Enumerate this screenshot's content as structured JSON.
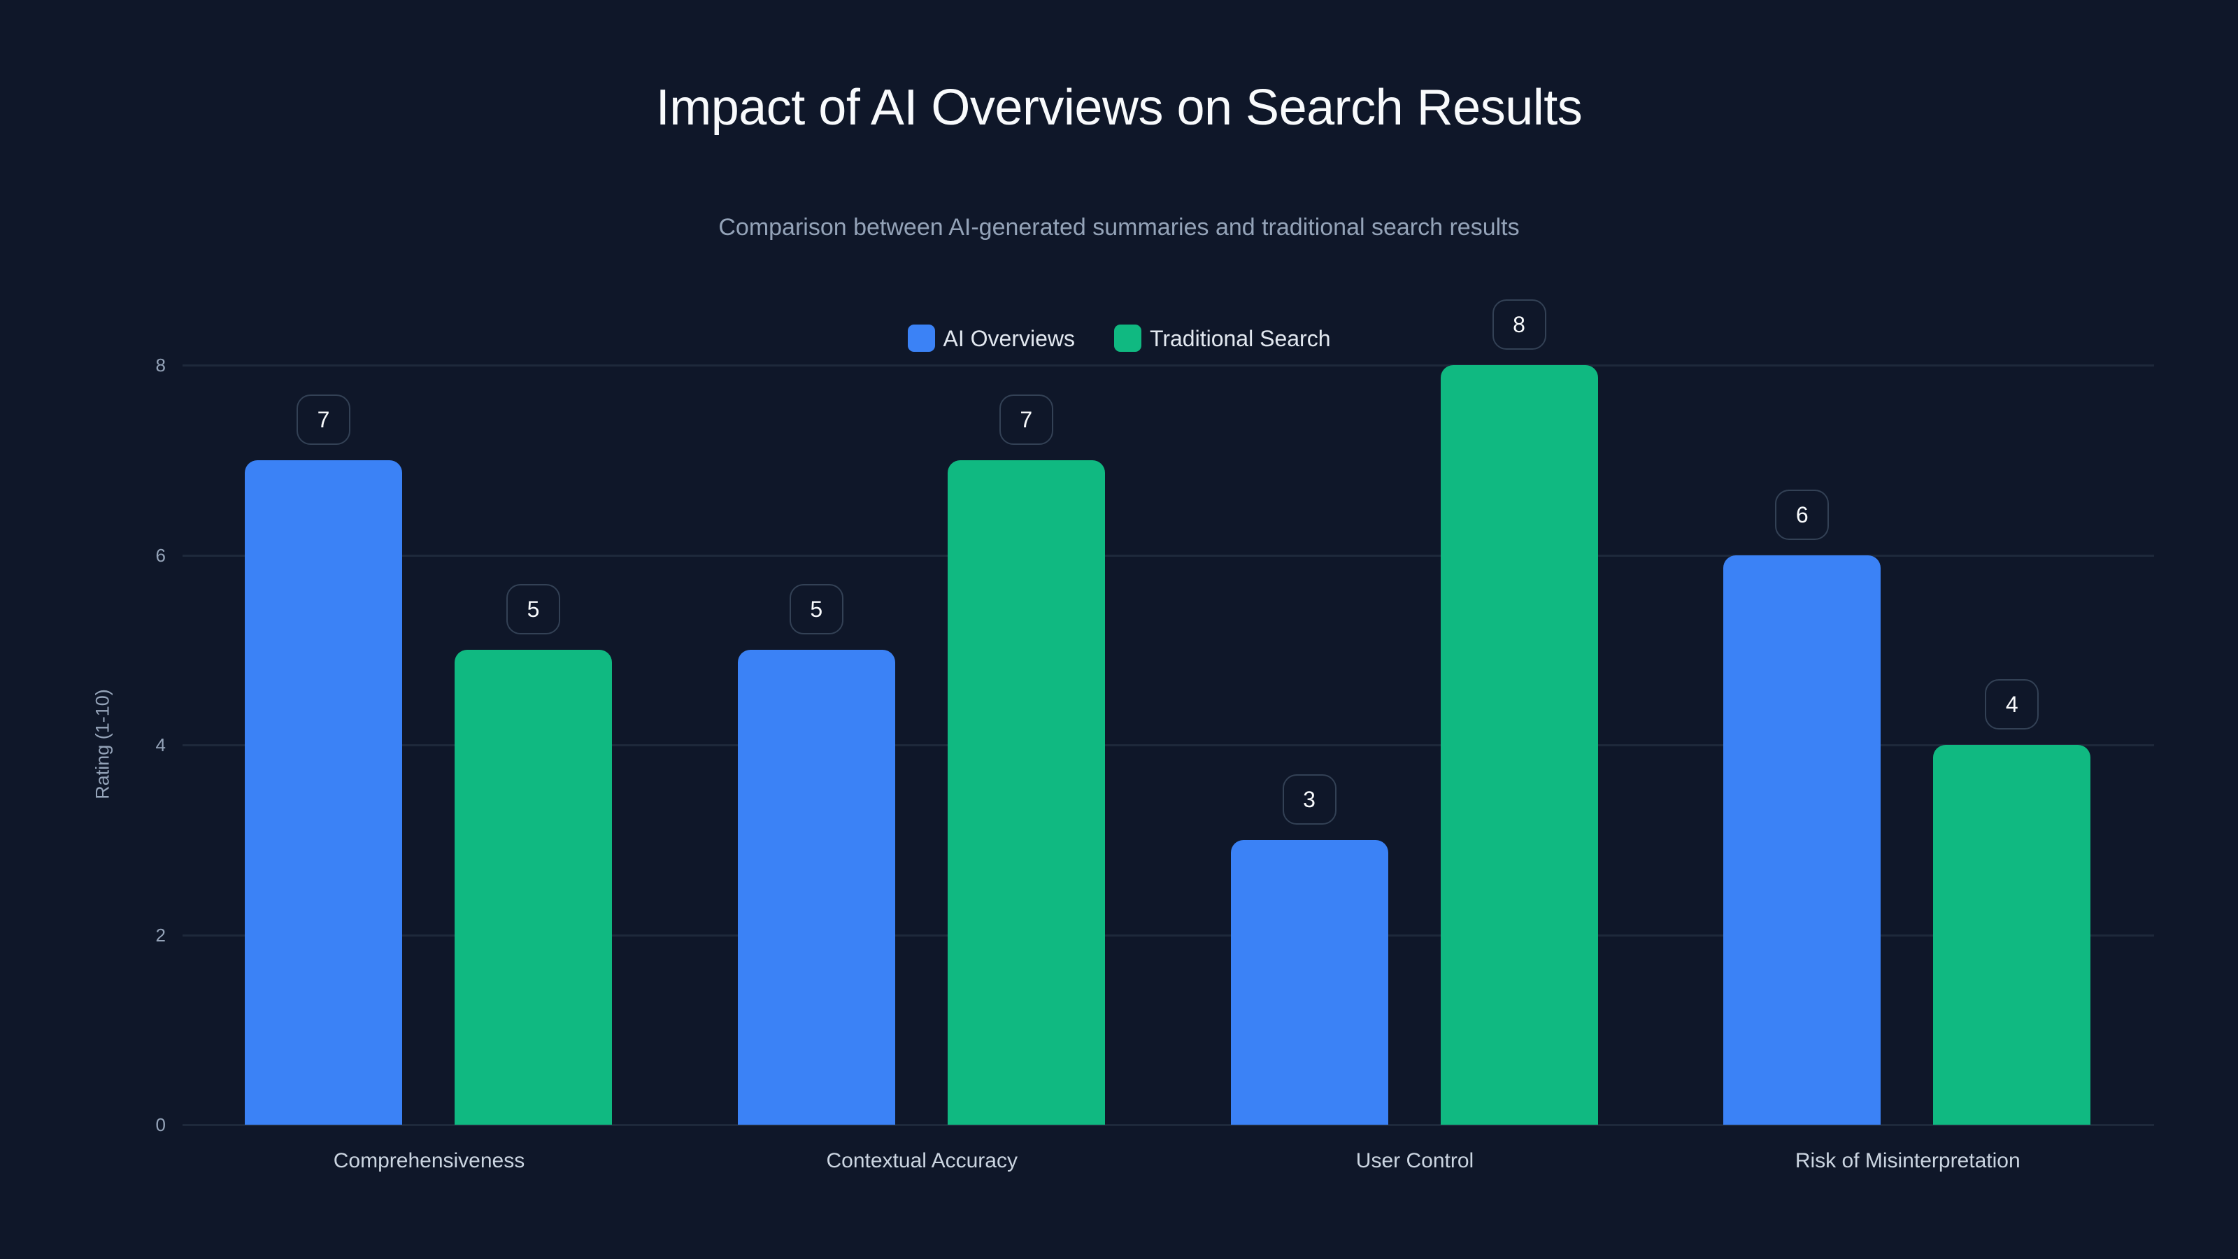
{
  "chart_data": {
    "type": "bar",
    "title": "Impact of AI Overviews on Search Results",
    "subtitle": "Comparison between AI-generated summaries and traditional search results",
    "xlabel": "",
    "ylabel": "Rating (1-10)",
    "categories": [
      "Comprehensiveness",
      "Contextual Accuracy",
      "User Control",
      "Risk of Misinterpretation"
    ],
    "series": [
      {
        "name": "AI Overviews",
        "color": "#3b82f6",
        "values": [
          7,
          5,
          3,
          6
        ]
      },
      {
        "name": "Traditional Search",
        "color": "#10b981",
        "values": [
          5,
          7,
          8,
          4
        ]
      }
    ],
    "ylim": [
      0,
      8
    ],
    "yticks": [
      0,
      2,
      4,
      6,
      8
    ],
    "grid": true,
    "legend_position": "top-center",
    "data_labels": true
  },
  "colors": {
    "background": "#0f1729",
    "gridline": "#1e293b",
    "title": "#f8fafc",
    "subtitle": "#94a3b8",
    "label_border": "#334155"
  }
}
